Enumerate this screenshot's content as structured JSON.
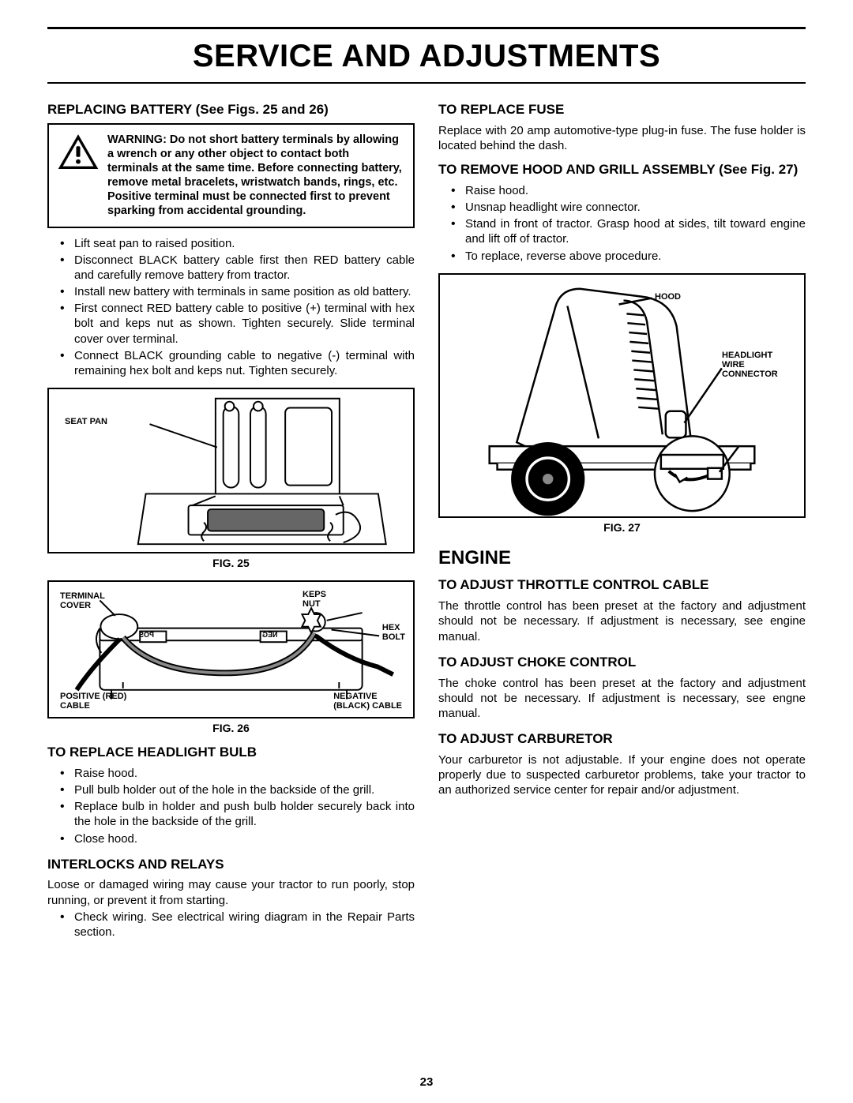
{
  "page": {
    "title": "SERVICE AND ADJUSTMENTS",
    "number": "23"
  },
  "left": {
    "battery_heading": "REPLACING BATTERY (See Figs. 25 and 26)",
    "warning": "WARNING:  Do not short battery terminals by allowing a wrench or any other object to contact both terminals at the same time. Before connecting battery, remove metal bracelets, wristwatch bands, rings, etc. Positive terminal must be connected first to prevent sparking from accidental grounding.",
    "battery_steps": [
      "Lift seat pan to raised position.",
      "Disconnect BLACK battery cable first then RED battery cable and carefully remove battery from tractor.",
      "Install new battery with terminals in same position as old battery.",
      "First connect RED battery cable to positive (+) terminal with hex bolt and keps nut as shown. Tighten securely. Slide terminal cover over terminal.",
      "Connect BLACK grounding cable to negative (-) terminal with remaining hex bolt and keps nut. Tighten securely."
    ],
    "fig25": {
      "caption": "FIG. 25",
      "labels": {
        "seat_pan": "SEAT PAN"
      }
    },
    "fig26": {
      "caption": "FIG. 26",
      "labels": {
        "terminal_cover": "TERMINAL COVER",
        "keps_nut": "KEPS NUT",
        "hex_bolt": "HEX BOLT",
        "pos_cable": "POSITIVE (RED) CABLE",
        "neg_cable": "NEGATIVE (BLACK) CABLE",
        "pos": "POS",
        "neg": "NEG"
      }
    },
    "headlight_heading": "TO REPLACE HEADLIGHT BULB",
    "headlight_steps": [
      "Raise hood.",
      "Pull bulb holder out of the hole in the backside of the grill.",
      "Replace bulb in holder and push bulb holder securely back into the hole in the backside of the grill.",
      "Close hood."
    ],
    "interlocks_heading": "INTERLOCKS AND RELAYS",
    "interlocks_text": "Loose or damaged wiring may cause your tractor to run poorly, stop running, or prevent it from starting.",
    "interlocks_steps": [
      "Check wiring.  See electrical wiring diagram in the Repair Parts section."
    ]
  },
  "right": {
    "fuse_heading": "TO REPLACE FUSE",
    "fuse_text": "Replace with 20 amp automotive-type plug-in fuse.  The fuse holder is located behind the dash.",
    "hood_heading": "TO REMOVE HOOD AND GRILL ASSEMBLY (See Fig. 27)",
    "hood_steps": [
      "Raise hood.",
      "Unsnap headlight wire connector.",
      "Stand in front of tractor.  Grasp hood at sides, tilt toward engine and lift off of tractor.",
      "To replace, reverse above procedure."
    ],
    "fig27": {
      "caption": "FIG. 27",
      "labels": {
        "hood": "HOOD",
        "connector": "HEADLIGHT WIRE CONNECTOR"
      }
    },
    "engine_heading": "ENGINE",
    "throttle_heading": "TO ADJUST THROTTLE CONTROL CABLE",
    "throttle_text": "The throttle control has been preset at the factory and adjustment should not be necessary. If adjustment is necessary, see engine manual.",
    "choke_heading": "TO ADJUST CHOKE CONTROL",
    "choke_text": "The choke control has been preset at the factory and adjustment should not be necessary. If adjustment is necessary, see engne manual.",
    "carb_heading": "TO ADJUST CARBURETOR",
    "carb_text": "Your carburetor is not adjustable. If your engine does not operate properly due to suspected carburetor problems, take your tractor to an authorized service center for repair and/or adjustment."
  },
  "style": {
    "rule_color": "#000000",
    "text_color": "#000000",
    "title_fontsize": 40,
    "h2_fontsize": 17,
    "body_fontsize": 15,
    "label_fontsize": 11
  }
}
